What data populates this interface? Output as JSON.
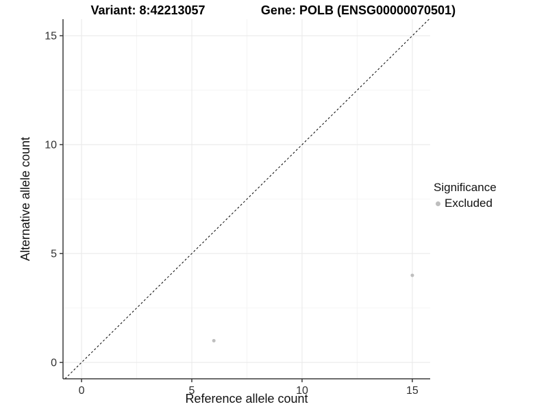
{
  "chart_data": {
    "type": "scatter",
    "titles": {
      "left": "Variant: 8:42213057",
      "right": "Gene: POLB (ENSG00000070501)"
    },
    "xlabel": "Reference allele count",
    "ylabel": "Alternative allele count",
    "xlim": [
      -0.84,
      15.81
    ],
    "ylim": [
      -0.75,
      15.76
    ],
    "xticks": [
      0,
      5,
      10,
      15
    ],
    "yticks": [
      0,
      5,
      10,
      15
    ],
    "xminor": [
      2.5,
      7.5,
      12.5
    ],
    "yminor": [
      2.5,
      7.5,
      12.5
    ],
    "grid": true,
    "identity_line": {
      "slope": 1,
      "intercept": 0,
      "style": "dashed",
      "color": "#000000"
    },
    "series": [
      {
        "name": "Excluded",
        "color": "#BEBEBE",
        "points": [
          [
            6,
            1
          ],
          [
            15,
            4
          ]
        ]
      }
    ],
    "legend": {
      "title": "Significance",
      "position": "right",
      "entries": [
        {
          "label": "Excluded",
          "color": "#BEBEBE"
        }
      ]
    }
  },
  "colors": {
    "grid_major": "#E8E8E8",
    "grid_minor": "#F4F4F4",
    "axis": "#3a3a3a",
    "tick": "#3a3a3a",
    "tick_label": "#303030",
    "point": "#BEBEBE"
  }
}
